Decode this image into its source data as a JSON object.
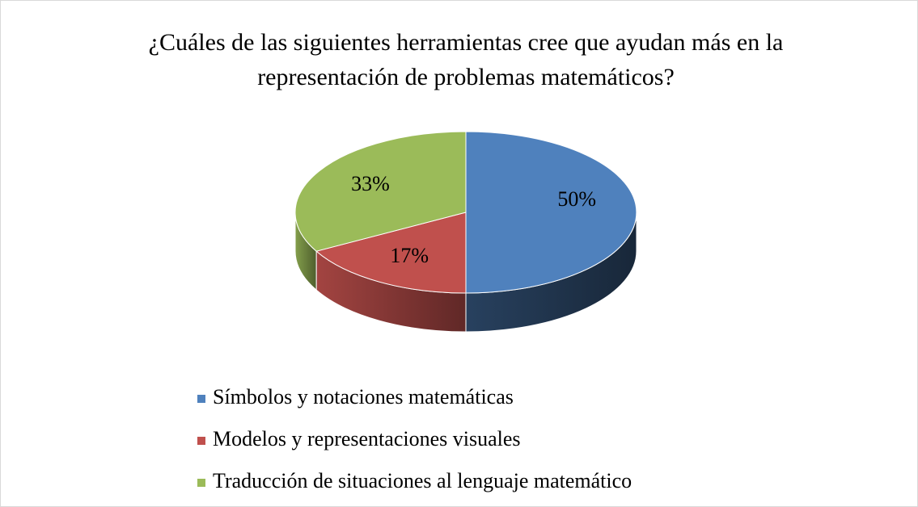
{
  "chart_data": {
    "type": "pie",
    "title": "¿Cuáles de las siguientes herramientas cree que ayudan más en la representación de problemas matemáticos?",
    "categories": [
      "Símbolos y notaciones matemáticas",
      "Modelos y representaciones visuales",
      "Traducción de situaciones al lenguaje matemático"
    ],
    "values": [
      50,
      17,
      33
    ],
    "value_labels": [
      "50%",
      "17%",
      "33%"
    ],
    "colors": [
      "#4f81bd",
      "#c0504d",
      "#9bbb59"
    ],
    "legend": "bottom"
  }
}
